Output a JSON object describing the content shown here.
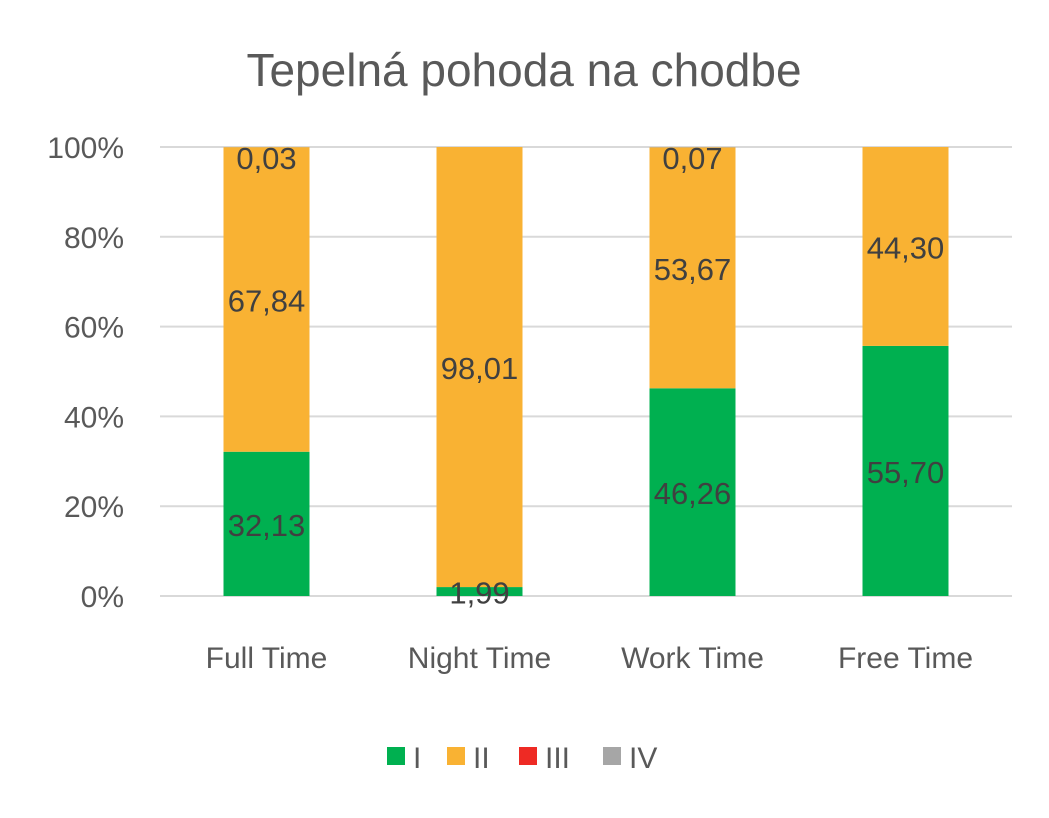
{
  "chart_data": {
    "type": "bar",
    "stacked": true,
    "percent": true,
    "title": "Tepelná pohoda na chodbe",
    "categories": [
      "Full Time",
      "Night Time",
      "Work Time",
      "Free Time"
    ],
    "series": [
      {
        "name": "I",
        "color": "#00b050",
        "values": [
          32.13,
          1.99,
          46.26,
          55.7
        ],
        "labels": [
          "32,13",
          "1,99",
          "46,26",
          "55,70"
        ]
      },
      {
        "name": "II",
        "color": "#f9b233",
        "values": [
          67.84,
          98.01,
          53.67,
          44.3
        ],
        "labels": [
          "67,84",
          "98,01",
          "53,67",
          "44,30"
        ]
      },
      {
        "name": "III",
        "color": "#ee2a24",
        "values": [
          0,
          0,
          0,
          0
        ],
        "labels": [
          "",
          "",
          "",
          ""
        ]
      },
      {
        "name": "IV",
        "color": "#a6a6a6",
        "values": [
          0.03,
          0,
          0.07,
          0
        ],
        "labels": [
          "0,03",
          "",
          "0,07",
          ""
        ]
      }
    ],
    "yticks": [
      "0%",
      "20%",
      "40%",
      "60%",
      "80%",
      "100%"
    ],
    "ylim": [
      0,
      100
    ],
    "grid": true,
    "legend": "bottom"
  }
}
